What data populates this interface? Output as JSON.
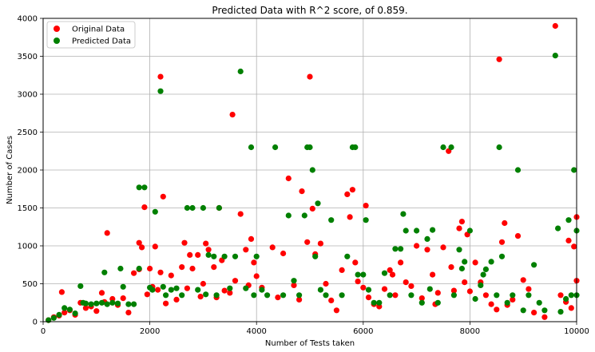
{
  "chart_data": {
    "type": "scatter",
    "title": "Predicted Data with R^2 score, of 0.859.",
    "xlabel": "Number of Tests taken",
    "ylabel": "Number of Cases",
    "xlim": [
      0,
      10000
    ],
    "ylim": [
      0,
      4000
    ],
    "xticks": [
      0,
      2000,
      4000,
      6000,
      8000,
      10000
    ],
    "yticks": [
      0,
      500,
      1000,
      1500,
      2000,
      2500,
      3000,
      3500,
      4000
    ],
    "grid": true,
    "legend_position": "top-left",
    "series": [
      {
        "name": "Original Data",
        "color": "#ff0000",
        "points": [
          [
            100,
            20
          ],
          [
            200,
            60
          ],
          [
            300,
            80
          ],
          [
            350,
            390
          ],
          [
            400,
            120
          ],
          [
            500,
            150
          ],
          [
            600,
            90
          ],
          [
            700,
            250
          ],
          [
            800,
            180
          ],
          [
            900,
            200
          ],
          [
            1000,
            140
          ],
          [
            1100,
            380
          ],
          [
            1150,
            260
          ],
          [
            1200,
            1170
          ],
          [
            1300,
            300
          ],
          [
            1400,
            220
          ],
          [
            1500,
            310
          ],
          [
            1600,
            120
          ],
          [
            1700,
            640
          ],
          [
            1800,
            690
          ],
          [
            1800,
            1040
          ],
          [
            1850,
            980
          ],
          [
            1900,
            1510
          ],
          [
            1950,
            360
          ],
          [
            2000,
            700
          ],
          [
            2050,
            460
          ],
          [
            2100,
            990
          ],
          [
            2150,
            420
          ],
          [
            2200,
            3230
          ],
          [
            2200,
            650
          ],
          [
            2250,
            1650
          ],
          [
            2300,
            240
          ],
          [
            2400,
            610
          ],
          [
            2500,
            290
          ],
          [
            2600,
            720
          ],
          [
            2650,
            1040
          ],
          [
            2700,
            440
          ],
          [
            2750,
            880
          ],
          [
            2800,
            700
          ],
          [
            2900,
            880
          ],
          [
            2950,
            330
          ],
          [
            3000,
            500
          ],
          [
            3050,
            1030
          ],
          [
            3100,
            950
          ],
          [
            3200,
            720
          ],
          [
            3250,
            320
          ],
          [
            3300,
            1500
          ],
          [
            3350,
            810
          ],
          [
            3400,
            410
          ],
          [
            3500,
            380
          ],
          [
            3550,
            2730
          ],
          [
            3600,
            540
          ],
          [
            3700,
            1420
          ],
          [
            3800,
            950
          ],
          [
            3850,
            480
          ],
          [
            3900,
            1090
          ],
          [
            3950,
            780
          ],
          [
            4000,
            600
          ],
          [
            4100,
            450
          ],
          [
            4300,
            980
          ],
          [
            4400,
            320
          ],
          [
            4500,
            900
          ],
          [
            4600,
            1890
          ],
          [
            4700,
            480
          ],
          [
            4800,
            290
          ],
          [
            4850,
            1720
          ],
          [
            4950,
            1050
          ],
          [
            5000,
            3230
          ],
          [
            5050,
            1490
          ],
          [
            5100,
            890
          ],
          [
            5200,
            1030
          ],
          [
            5300,
            500
          ],
          [
            5400,
            280
          ],
          [
            5500,
            150
          ],
          [
            5600,
            680
          ],
          [
            5700,
            1680
          ],
          [
            5750,
            1380
          ],
          [
            5800,
            1740
          ],
          [
            5850,
            780
          ],
          [
            5900,
            530
          ],
          [
            6000,
            450
          ],
          [
            6050,
            1530
          ],
          [
            6100,
            320
          ],
          [
            6200,
            230
          ],
          [
            6300,
            200
          ],
          [
            6400,
            430
          ],
          [
            6500,
            680
          ],
          [
            6550,
            620
          ],
          [
            6600,
            350
          ],
          [
            6700,
            780
          ],
          [
            6800,
            520
          ],
          [
            6900,
            470
          ],
          [
            7000,
            1000
          ],
          [
            7100,
            310
          ],
          [
            7200,
            950
          ],
          [
            7300,
            620
          ],
          [
            7350,
            230
          ],
          [
            7400,
            380
          ],
          [
            7500,
            980
          ],
          [
            7600,
            2250
          ],
          [
            7650,
            720
          ],
          [
            7700,
            410
          ],
          [
            7800,
            1230
          ],
          [
            7850,
            1320
          ],
          [
            7900,
            520
          ],
          [
            7950,
            1150
          ],
          [
            8000,
            400
          ],
          [
            8100,
            780
          ],
          [
            8200,
            520
          ],
          [
            8300,
            350
          ],
          [
            8400,
            230
          ],
          [
            8500,
            160
          ],
          [
            8550,
            3460
          ],
          [
            8600,
            1050
          ],
          [
            8650,
            1300
          ],
          [
            8700,
            220
          ],
          [
            8800,
            290
          ],
          [
            8900,
            1130
          ],
          [
            9000,
            550
          ],
          [
            9100,
            430
          ],
          [
            9200,
            120
          ],
          [
            9400,
            60
          ],
          [
            9600,
            3900
          ],
          [
            9700,
            350
          ],
          [
            9800,
            260
          ],
          [
            9850,
            1070
          ],
          [
            9950,
            990
          ],
          [
            10000,
            540
          ],
          [
            10000,
            1380
          ],
          [
            9900,
            180
          ]
        ]
      },
      {
        "name": "Predicted Data",
        "color": "#008000",
        "points": [
          [
            100,
            20
          ],
          [
            200,
            50
          ],
          [
            300,
            90
          ],
          [
            400,
            180
          ],
          [
            500,
            160
          ],
          [
            600,
            110
          ],
          [
            700,
            470
          ],
          [
            750,
            250
          ],
          [
            800,
            240
          ],
          [
            900,
            230
          ],
          [
            1000,
            240
          ],
          [
            1100,
            250
          ],
          [
            1150,
            650
          ],
          [
            1200,
            230
          ],
          [
            1300,
            250
          ],
          [
            1400,
            240
          ],
          [
            1450,
            700
          ],
          [
            1500,
            460
          ],
          [
            1600,
            230
          ],
          [
            1700,
            230
          ],
          [
            1800,
            700
          ],
          [
            1800,
            1770
          ],
          [
            1900,
            1770
          ],
          [
            2000,
            450
          ],
          [
            2050,
            420
          ],
          [
            2100,
            1450
          ],
          [
            2200,
            3040
          ],
          [
            2250,
            460
          ],
          [
            2300,
            350
          ],
          [
            2400,
            420
          ],
          [
            2500,
            440
          ],
          [
            2600,
            350
          ],
          [
            2700,
            1500
          ],
          [
            2800,
            1500
          ],
          [
            2900,
            420
          ],
          [
            3000,
            1500
          ],
          [
            3050,
            360
          ],
          [
            3100,
            880
          ],
          [
            3200,
            860
          ],
          [
            3250,
            350
          ],
          [
            3300,
            1500
          ],
          [
            3400,
            860
          ],
          [
            3500,
            440
          ],
          [
            3600,
            860
          ],
          [
            3700,
            3300
          ],
          [
            3800,
            440
          ],
          [
            3900,
            2300
          ],
          [
            3950,
            350
          ],
          [
            4000,
            860
          ],
          [
            4100,
            420
          ],
          [
            4200,
            350
          ],
          [
            4350,
            2300
          ],
          [
            4500,
            350
          ],
          [
            4600,
            1400
          ],
          [
            4700,
            540
          ],
          [
            4800,
            350
          ],
          [
            4900,
            1400
          ],
          [
            4950,
            2300
          ],
          [
            5000,
            2300
          ],
          [
            5050,
            2000
          ],
          [
            5100,
            860
          ],
          [
            5150,
            1560
          ],
          [
            5200,
            420
          ],
          [
            5300,
            350
          ],
          [
            5400,
            1340
          ],
          [
            5600,
            350
          ],
          [
            5700,
            860
          ],
          [
            5800,
            2300
          ],
          [
            5850,
            2300
          ],
          [
            5900,
            620
          ],
          [
            6000,
            620
          ],
          [
            6050,
            1340
          ],
          [
            6100,
            420
          ],
          [
            6200,
            250
          ],
          [
            6300,
            250
          ],
          [
            6400,
            640
          ],
          [
            6500,
            350
          ],
          [
            6600,
            960
          ],
          [
            6700,
            960
          ],
          [
            6750,
            1420
          ],
          [
            6800,
            1200
          ],
          [
            6900,
            350
          ],
          [
            7000,
            1200
          ],
          [
            7100,
            250
          ],
          [
            7200,
            1090
          ],
          [
            7300,
            1210
          ],
          [
            7400,
            250
          ],
          [
            7500,
            2300
          ],
          [
            7650,
            2300
          ],
          [
            7700,
            350
          ],
          [
            7800,
            950
          ],
          [
            7850,
            700
          ],
          [
            7900,
            790
          ],
          [
            8000,
            1200
          ],
          [
            8100,
            300
          ],
          [
            8200,
            480
          ],
          [
            8300,
            690
          ],
          [
            8400,
            790
          ],
          [
            8500,
            350
          ],
          [
            8550,
            2300
          ],
          [
            8600,
            860
          ],
          [
            8700,
            250
          ],
          [
            8800,
            350
          ],
          [
            8900,
            2000
          ],
          [
            9000,
            150
          ],
          [
            9100,
            350
          ],
          [
            9200,
            750
          ],
          [
            9400,
            150
          ],
          [
            9600,
            3510
          ],
          [
            9650,
            1230
          ],
          [
            9700,
            130
          ],
          [
            9800,
            300
          ],
          [
            9850,
            1340
          ],
          [
            9900,
            350
          ],
          [
            9950,
            2000
          ],
          [
            10000,
            1200
          ],
          [
            10000,
            350
          ],
          [
            9300,
            250
          ],
          [
            8250,
            620
          ],
          [
            7250,
            430
          ]
        ]
      }
    ]
  }
}
